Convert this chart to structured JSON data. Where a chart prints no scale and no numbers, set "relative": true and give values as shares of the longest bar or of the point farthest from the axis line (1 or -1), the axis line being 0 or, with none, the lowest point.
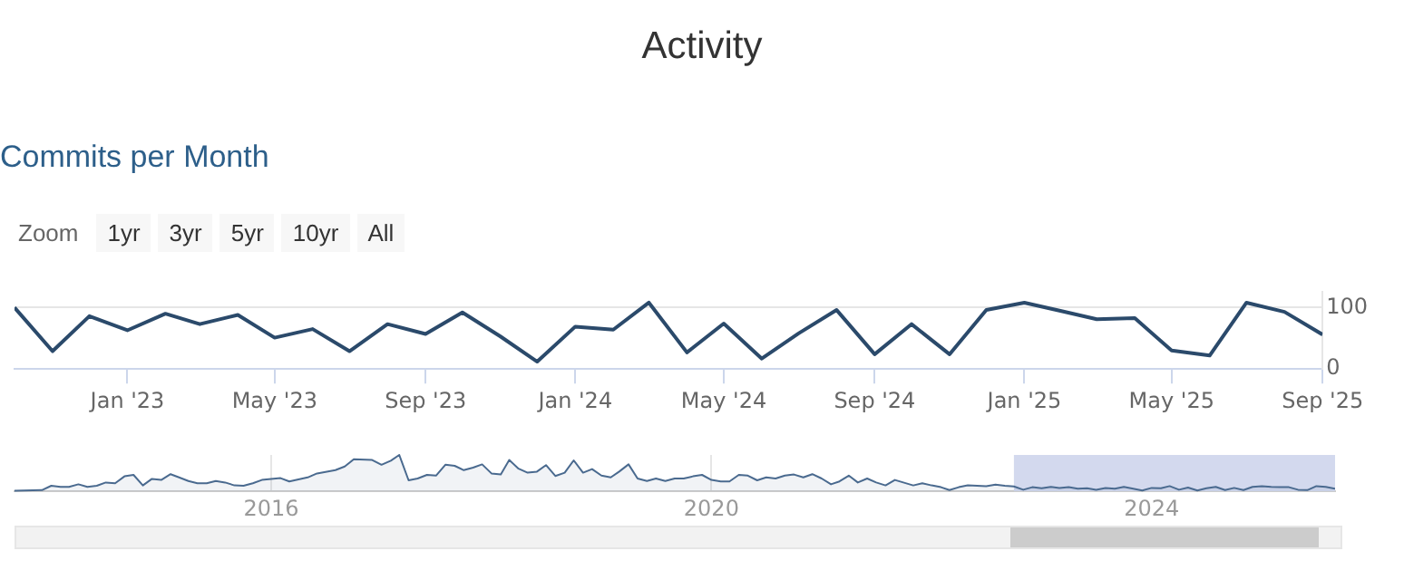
{
  "chart_data": [
    {
      "type": "line",
      "title": "Activity",
      "subtitle": "Commits per Month",
      "annotations": [
        "Zoom",
        "1yr",
        "3yr",
        "5yr",
        "10yr",
        "All"
      ],
      "x": [
        "2022-10",
        "2022-11",
        "2022-12",
        "2023-01",
        "2023-02",
        "2023-03",
        "2023-04",
        "2023-05",
        "2023-06",
        "2023-07",
        "2023-08",
        "2023-09",
        "2023-10",
        "2023-11",
        "2023-12",
        "2024-01",
        "2024-02",
        "2024-03",
        "2024-04",
        "2024-05",
        "2024-06",
        "2024-07",
        "2024-08",
        "2024-09",
        "2024-10",
        "2024-11",
        "2024-12",
        "2025-01",
        "2025-02",
        "2025-03",
        "2025-04",
        "2025-05",
        "2025-06",
        "2025-07",
        "2025-08",
        "2025-09"
      ],
      "series": [
        {
          "color": "#2b4a6b",
          "values": [
            100,
            29,
            86,
            63,
            90,
            73,
            88,
            51,
            65,
            29,
            73,
            57,
            92,
            53,
            12,
            69,
            64,
            108,
            27,
            74,
            17,
            58,
            96,
            24,
            73,
            24,
            96,
            108,
            94,
            81,
            83,
            30,
            22,
            108,
            93,
            56
          ]
        }
      ],
      "xlim": [
        "2022-10",
        "2025-09"
      ],
      "xticks": [
        {
          "value": "2023-01",
          "label": "Jan '23"
        },
        {
          "value": "2023-05",
          "label": "May '23"
        },
        {
          "value": "2023-09",
          "label": "Sep '23"
        },
        {
          "value": "2024-01",
          "label": "Jan '24"
        },
        {
          "value": "2024-05",
          "label": "May '24"
        },
        {
          "value": "2024-09",
          "label": "Sep '24"
        },
        {
          "value": "2025-01",
          "label": "Jan '25"
        },
        {
          "value": "2025-05",
          "label": "May '25"
        },
        {
          "value": "2025-09",
          "label": "Sep '25"
        }
      ],
      "ylim": [
        0,
        125
      ],
      "yticks": [
        0,
        100
      ],
      "grid": "y",
      "legend": false,
      "marker": "none",
      "line_style": "solid"
    },
    {
      "type": "area",
      "relative": true,
      "x": [
        "2013-09",
        "2013-12",
        "2014-01",
        "2014-02",
        "2014-03",
        "2014-04",
        "2014-05",
        "2014-06",
        "2014-07",
        "2014-08",
        "2014-09",
        "2014-10",
        "2014-11",
        "2014-12",
        "2015-01",
        "2015-02",
        "2015-03",
        "2015-04",
        "2015-05",
        "2015-06",
        "2015-07",
        "2015-08",
        "2015-09",
        "2015-10",
        "2015-11",
        "2015-12",
        "2016-02",
        "2016-03",
        "2016-05",
        "2016-06",
        "2016-08",
        "2016-09",
        "2016-10",
        "2016-12",
        "2017-01",
        "2017-02",
        "2017-03",
        "2017-04",
        "2017-05",
        "2017-06",
        "2017-07",
        "2017-08",
        "2017-09",
        "2017-10",
        "2017-11",
        "2017-12",
        "2018-01",
        "2018-02",
        "2018-03",
        "2018-04",
        "2018-05",
        "2018-06",
        "2018-07",
        "2018-08",
        "2018-09",
        "2018-10",
        "2018-11",
        "2018-12",
        "2019-01",
        "2019-02",
        "2019-03",
        "2019-04",
        "2019-05",
        "2019-06",
        "2019-07",
        "2019-08",
        "2019-09",
        "2019-10",
        "2019-11",
        "2019-12",
        "2020-01",
        "2020-02",
        "2020-03",
        "2020-04",
        "2020-05",
        "2020-06",
        "2020-07",
        "2020-08",
        "2020-09",
        "2020-10",
        "2020-11",
        "2020-12",
        "2021-01",
        "2021-02",
        "2021-03",
        "2021-04",
        "2021-05",
        "2021-06",
        "2021-07",
        "2021-08",
        "2021-09",
        "2021-11",
        "2021-12",
        "2022-01",
        "2022-02",
        "2022-03",
        "2022-04",
        "2022-05",
        "2022-06",
        "2022-07",
        "2022-08",
        "2022-09",
        "2022-10",
        "2022-11",
        "2022-12",
        "2023-01",
        "2023-02",
        "2023-03",
        "2023-04",
        "2023-05",
        "2023-06",
        "2023-07",
        "2023-08",
        "2023-09",
        "2023-10",
        "2023-11",
        "2023-12",
        "2024-01",
        "2024-02",
        "2024-03",
        "2024-04",
        "2024-05",
        "2024-06",
        "2024-07",
        "2024-08",
        "2024-09",
        "2024-10",
        "2024-11",
        "2024-12",
        "2025-01",
        "2025-02",
        "2025-03",
        "2025-04",
        "2025-05",
        "2025-06",
        "2025-07",
        "2025-08",
        "2025-09"
      ],
      "series": [
        {
          "color": "#4a6a8f",
          "values": [
            0.01,
            0.03,
            0.15,
            0.12,
            0.12,
            0.19,
            0.12,
            0.15,
            0.24,
            0.22,
            0.41,
            0.45,
            0.16,
            0.34,
            0.31,
            0.47,
            0.38,
            0.28,
            0.22,
            0.22,
            0.28,
            0.24,
            0.16,
            0.15,
            0.22,
            0.31,
            0.36,
            0.27,
            0.38,
            0.49,
            0.58,
            0.68,
            0.88,
            0.86,
            0.73,
            0.84,
            1,
            0.3,
            0.35,
            0.45,
            0.43,
            0.73,
            0.7,
            0.58,
            0.65,
            0.74,
            0.49,
            0.46,
            0.86,
            0.62,
            0.51,
            0.54,
            0.72,
            0.42,
            0.51,
            0.85,
            0.51,
            0.61,
            0.43,
            0.38,
            0.54,
            0.74,
            0.35,
            0.28,
            0.35,
            0.28,
            0.35,
            0.35,
            0.41,
            0.45,
            0.31,
            0.27,
            0.27,
            0.45,
            0.43,
            0.3,
            0.38,
            0.35,
            0.43,
            0.46,
            0.38,
            0.47,
            0.35,
            0.19,
            0.27,
            0.43,
            0.24,
            0.35,
            0.24,
            0.16,
            0.31,
            0.16,
            0.22,
            0.16,
            0.11,
            0.03,
            0.11,
            0.16,
            0.15,
            0.14,
            0.18,
            0.15,
            0.13,
            0.04,
            0.11,
            0.08,
            0.12,
            0.09,
            0.11,
            0.07,
            0.08,
            0.04,
            0.09,
            0.07,
            0.12,
            0.07,
            0.02,
            0.09,
            0.08,
            0.14,
            0.04,
            0.1,
            0.02,
            0.08,
            0.12,
            0.03,
            0.09,
            0.03,
            0.12,
            0.14,
            0.12,
            0.11,
            0.11,
            0.04,
            0.03,
            0.14,
            0.12,
            0.07
          ]
        }
      ],
      "xlim": [
        "2013-09",
        "2025-09"
      ],
      "xticks": [
        {
          "value": "2016-01",
          "label": "2016"
        },
        {
          "value": "2020-01",
          "label": "2020"
        },
        {
          "value": "2024-01",
          "label": "2024"
        }
      ],
      "bands": [
        {
          "axis": "x",
          "from": "2022-10",
          "to": "2025-09",
          "color": "#d3d9ee"
        }
      ],
      "grid": "x",
      "legend": false,
      "marker": "none"
    }
  ]
}
